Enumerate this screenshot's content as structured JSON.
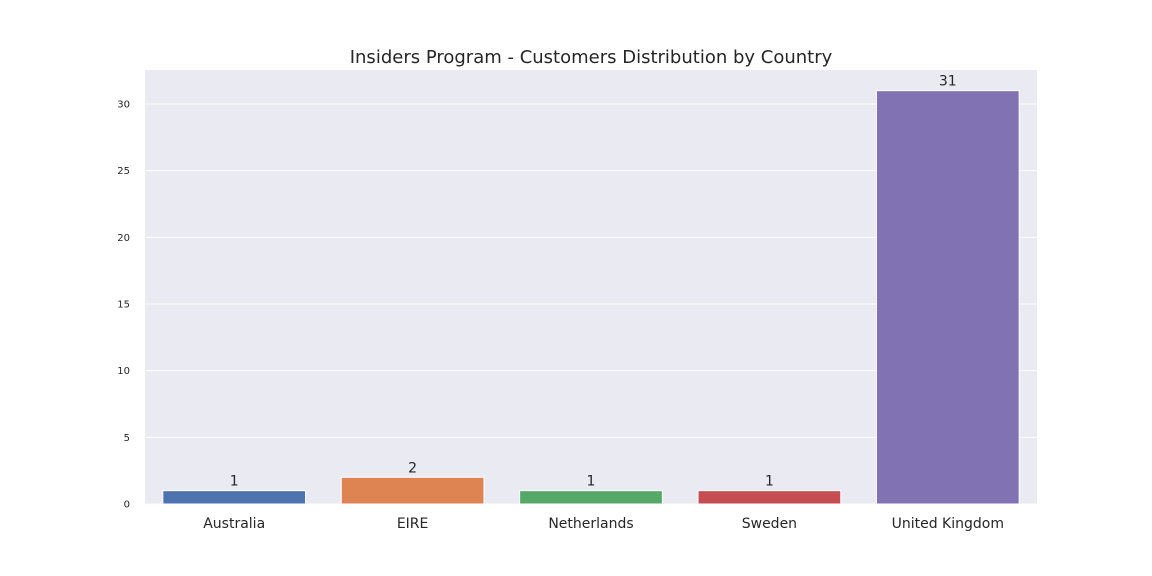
{
  "chart_data": {
    "type": "bar",
    "title": "Insiders Program - Customers Distribution by Country",
    "xlabel": "",
    "ylabel": "",
    "categories": [
      "Australia",
      "EIRE",
      "Netherlands",
      "Sweden",
      "United Kingdom"
    ],
    "values": [
      1,
      2,
      1,
      1,
      31
    ],
    "data_labels": [
      "1",
      "2",
      "1",
      "1",
      "31"
    ],
    "colors": [
      "#4c72b0",
      "#dd8452",
      "#55a868",
      "#c44e52",
      "#8172b3"
    ],
    "ylim": [
      0,
      32.55
    ],
    "yticks": [
      0,
      5,
      10,
      15,
      20,
      25,
      30
    ],
    "ytick_labels": [
      "0",
      "5",
      "10",
      "15",
      "20",
      "25",
      "30"
    ],
    "grid": true,
    "style": {
      "background": "#eaeaf2",
      "grid_color": "#ffffff"
    }
  }
}
